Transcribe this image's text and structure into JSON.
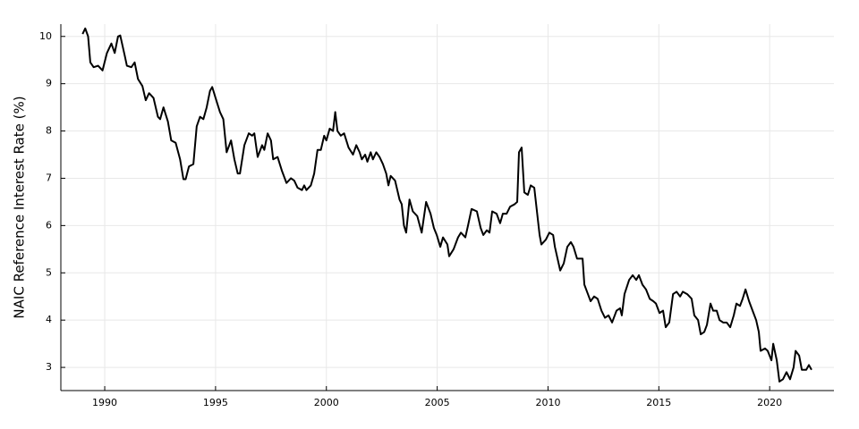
{
  "chart_data": {
    "type": "line",
    "ylabel": "NAIC Reference Interest Rate (%)",
    "xlim": [
      1988.02,
      2022.9
    ],
    "ylim": [
      2.51,
      10.26
    ],
    "xticks": [
      1990,
      1995,
      2000,
      2005,
      2010,
      2015,
      2020
    ],
    "yticks": [
      3,
      4,
      5,
      6,
      7,
      8,
      9,
      10
    ],
    "grid": true,
    "series": [
      {
        "name": "NAIC Reference Interest Rate",
        "color": "#000000",
        "x": [
          1989.0,
          1989.12,
          1989.25,
          1989.35,
          1989.5,
          1989.7,
          1989.9,
          1990.1,
          1990.3,
          1990.45,
          1990.6,
          1990.7,
          1990.9,
          1991.0,
          1991.2,
          1991.35,
          1991.5,
          1991.7,
          1991.85,
          1992.0,
          1992.2,
          1992.4,
          1992.5,
          1992.65,
          1992.85,
          1993.0,
          1993.2,
          1993.4,
          1993.55,
          1993.65,
          1993.8,
          1994.0,
          1994.15,
          1994.3,
          1994.45,
          1994.6,
          1994.75,
          1994.85,
          1995.0,
          1995.2,
          1995.35,
          1995.5,
          1995.7,
          1995.85,
          1996.0,
          1996.1,
          1996.3,
          1996.5,
          1996.65,
          1996.75,
          1996.9,
          1997.1,
          1997.2,
          1997.35,
          1997.5,
          1997.6,
          1997.8,
          1998.0,
          1998.2,
          1998.4,
          1998.55,
          1998.7,
          1998.9,
          1999.0,
          1999.1,
          1999.3,
          1999.45,
          1999.6,
          1999.75,
          1999.9,
          2000.0,
          2000.15,
          2000.3,
          2000.4,
          2000.5,
          2000.65,
          2000.8,
          2001.0,
          2001.2,
          2001.35,
          2001.5,
          2001.6,
          2001.75,
          2001.85,
          2002.0,
          2002.1,
          2002.25,
          2002.4,
          2002.55,
          2002.7,
          2002.8,
          2002.9,
          2003.1,
          2003.3,
          2003.4,
          2003.5,
          2003.6,
          2003.75,
          2003.9,
          2004.1,
          2004.3,
          2004.5,
          2004.7,
          2004.85,
          2004.98,
          2005.14,
          2005.26,
          2005.46,
          2005.54,
          2005.74,
          2005.94,
          2006.07,
          2006.27,
          2006.39,
          2006.55,
          2006.79,
          2006.96,
          2007.08,
          2007.24,
          2007.36,
          2007.48,
          2007.68,
          2007.84,
          2007.96,
          2008.13,
          2008.29,
          2008.49,
          2008.61,
          2008.69,
          2008.81,
          2008.93,
          2009.09,
          2009.22,
          2009.38,
          2009.5,
          2009.62,
          2009.7,
          2009.9,
          2010.06,
          2010.23,
          2010.31,
          2010.55,
          2010.71,
          2010.87,
          2011.03,
          2011.15,
          2011.31,
          2011.56,
          2011.64,
          2011.8,
          2011.92,
          2012.08,
          2012.24,
          2012.41,
          2012.57,
          2012.73,
          2012.89,
          2013.09,
          2013.25,
          2013.33,
          2013.45,
          2013.66,
          2013.82,
          2013.98,
          2014.1,
          2014.26,
          2014.42,
          2014.59,
          2014.75,
          2014.87,
          2015.03,
          2015.19,
          2015.31,
          2015.47,
          2015.64,
          2015.8,
          2015.96,
          2016.08,
          2016.28,
          2016.48,
          2016.6,
          2016.77,
          2016.89,
          2017.05,
          2017.17,
          2017.33,
          2017.45,
          2017.61,
          2017.74,
          2017.9,
          2018.06,
          2018.22,
          2018.38,
          2018.5,
          2018.66,
          2018.78,
          2018.91,
          2019.07,
          2019.23,
          2019.39,
          2019.51,
          2019.59,
          2019.79,
          2019.91,
          2020.08,
          2020.16,
          2020.32,
          2020.44,
          2020.6,
          2020.76,
          2020.92,
          2021.08,
          2021.17,
          2021.33,
          2021.45,
          2021.65,
          2021.77,
          2021.89
        ],
        "values": [
          10.05,
          10.17,
          10.0,
          9.45,
          9.35,
          9.38,
          9.28,
          9.65,
          9.85,
          9.65,
          10.0,
          10.02,
          9.6,
          9.38,
          9.35,
          9.45,
          9.1,
          8.95,
          8.65,
          8.8,
          8.7,
          8.3,
          8.25,
          8.5,
          8.2,
          7.8,
          7.75,
          7.4,
          6.98,
          6.98,
          7.25,
          7.3,
          8.1,
          8.3,
          8.25,
          8.5,
          8.85,
          8.93,
          8.7,
          8.4,
          8.25,
          7.55,
          7.8,
          7.4,
          7.1,
          7.1,
          7.7,
          7.95,
          7.9,
          7.95,
          7.45,
          7.7,
          7.6,
          7.95,
          7.8,
          7.4,
          7.45,
          7.15,
          6.9,
          7.0,
          6.95,
          6.8,
          6.75,
          6.85,
          6.75,
          6.85,
          7.1,
          7.6,
          7.6,
          7.9,
          7.8,
          8.05,
          8.0,
          8.4,
          8.0,
          7.9,
          7.95,
          7.65,
          7.5,
          7.7,
          7.55,
          7.4,
          7.5,
          7.35,
          7.55,
          7.4,
          7.55,
          7.45,
          7.3,
          7.1,
          6.85,
          7.05,
          6.95,
          6.55,
          6.45,
          6.0,
          5.85,
          6.55,
          6.3,
          6.2,
          5.85,
          6.5,
          6.25,
          5.95,
          5.8,
          5.55,
          5.75,
          5.6,
          5.35,
          5.5,
          5.75,
          5.85,
          5.75,
          6.0,
          6.35,
          6.3,
          5.95,
          5.8,
          5.9,
          5.85,
          6.3,
          6.25,
          6.05,
          6.25,
          6.25,
          6.4,
          6.45,
          6.5,
          7.55,
          7.65,
          6.7,
          6.65,
          6.85,
          6.8,
          6.3,
          5.8,
          5.6,
          5.7,
          5.85,
          5.8,
          5.55,
          5.05,
          5.2,
          5.55,
          5.65,
          5.55,
          5.3,
          5.3,
          4.75,
          4.55,
          4.4,
          4.5,
          4.45,
          4.2,
          4.05,
          4.1,
          3.95,
          4.2,
          4.25,
          4.1,
          4.55,
          4.85,
          4.95,
          4.85,
          4.95,
          4.75,
          4.65,
          4.45,
          4.4,
          4.35,
          4.15,
          4.2,
          3.85,
          3.95,
          4.55,
          4.6,
          4.5,
          4.6,
          4.55,
          4.45,
          4.1,
          4.0,
          3.7,
          3.75,
          3.9,
          4.35,
          4.2,
          4.2,
          4.0,
          3.95,
          3.95,
          3.85,
          4.1,
          4.35,
          4.3,
          4.45,
          4.65,
          4.4,
          4.2,
          4.0,
          3.75,
          3.35,
          3.4,
          3.35,
          3.15,
          3.5,
          3.15,
          2.7,
          2.75,
          2.9,
          2.75,
          3.0,
          3.35,
          3.25,
          2.95,
          2.95,
          3.05,
          2.95
        ]
      }
    ]
  }
}
